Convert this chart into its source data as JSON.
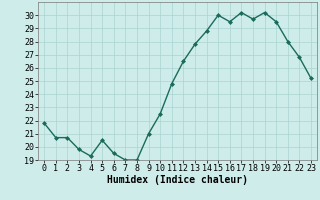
{
  "x": [
    0,
    1,
    2,
    3,
    4,
    5,
    6,
    7,
    8,
    9,
    10,
    11,
    12,
    13,
    14,
    15,
    16,
    17,
    18,
    19,
    20,
    21,
    22,
    23
  ],
  "y": [
    21.8,
    20.7,
    20.7,
    19.8,
    19.3,
    20.5,
    19.5,
    19.0,
    19.0,
    21.0,
    22.5,
    24.8,
    26.5,
    27.8,
    28.8,
    30.0,
    29.5,
    30.2,
    29.7,
    30.2,
    29.5,
    28.0,
    26.8,
    25.2
  ],
  "line_color": "#1a6b5a",
  "marker": "D",
  "marker_size": 2,
  "bg_color": "#ceecea",
  "grid_color": "#aad4d0",
  "xlabel": "Humidex (Indice chaleur)",
  "ylim": [
    19,
    31
  ],
  "xlim": [
    -0.5,
    23.5
  ],
  "yticks": [
    19,
    20,
    21,
    22,
    23,
    24,
    25,
    26,
    27,
    28,
    29,
    30
  ],
  "xticks": [
    0,
    1,
    2,
    3,
    4,
    5,
    6,
    7,
    8,
    9,
    10,
    11,
    12,
    13,
    14,
    15,
    16,
    17,
    18,
    19,
    20,
    21,
    22,
    23
  ],
  "xlabel_fontsize": 7,
  "tick_fontsize": 6,
  "line_width": 1.0
}
